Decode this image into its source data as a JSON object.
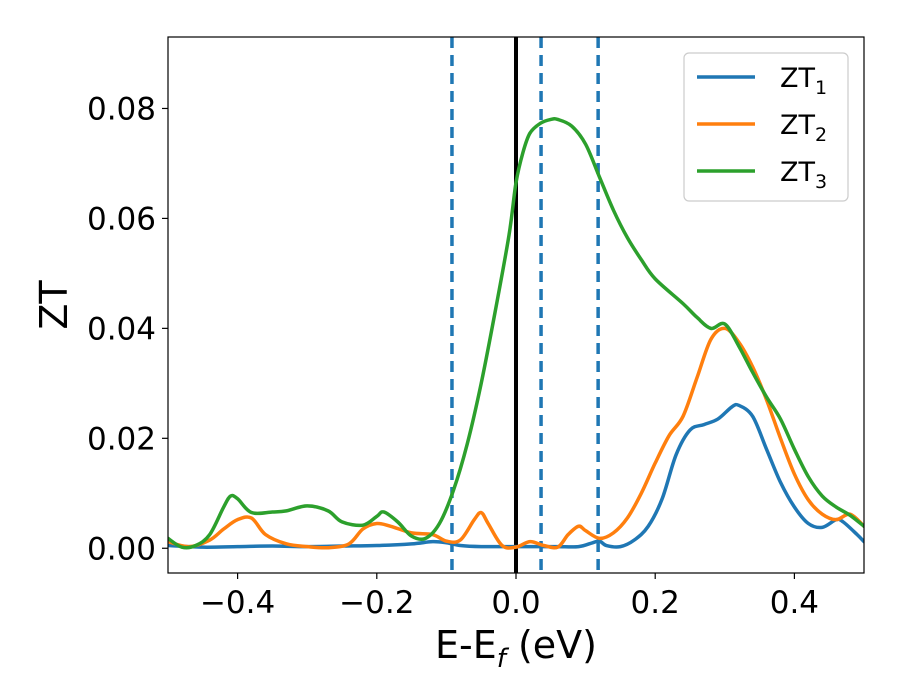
{
  "chart_data": {
    "type": "line",
    "title": "",
    "xlabel": "E-E",
    "xlabel_sub": "f",
    "xlabel_unit": " (eV)",
    "ylabel": "ZT",
    "xlim": [
      -0.5,
      0.5
    ],
    "ylim": [
      -0.0045,
      0.093
    ],
    "xticks": [
      -0.4,
      -0.2,
      0.0,
      0.2,
      0.4
    ],
    "xtick_labels": [
      "−0.4",
      "−0.2",
      "0.0",
      "0.2",
      "0.4"
    ],
    "yticks": [
      0.0,
      0.02,
      0.04,
      0.06,
      0.08
    ],
    "ytick_labels": [
      "0.00",
      "0.02",
      "0.04",
      "0.06",
      "0.08"
    ],
    "grid": false,
    "legend_position": "top-right",
    "series": [
      {
        "name": "ZT",
        "name_sub": "1",
        "color": "#1f77b4",
        "points": [
          [
            -0.5,
            0.0005
          ],
          [
            -0.45,
            0.0002
          ],
          [
            -0.4,
            0.0003
          ],
          [
            -0.35,
            0.0004
          ],
          [
            -0.3,
            0.0003
          ],
          [
            -0.25,
            0.0004
          ],
          [
            -0.2,
            0.0005
          ],
          [
            -0.15,
            0.0008
          ],
          [
            -0.12,
            0.0012
          ],
          [
            -0.1,
            0.001
          ],
          [
            -0.08,
            0.0005
          ],
          [
            -0.05,
            0.0003
          ],
          [
            0.0,
            0.0003
          ],
          [
            0.03,
            0.0003
          ],
          [
            0.06,
            0.0003
          ],
          [
            0.09,
            0.0003
          ],
          [
            0.11,
            0.001
          ],
          [
            0.12,
            0.0013
          ],
          [
            0.13,
            0.0005
          ],
          [
            0.15,
            0.0003
          ],
          [
            0.17,
            0.0015
          ],
          [
            0.19,
            0.004
          ],
          [
            0.21,
            0.009
          ],
          [
            0.23,
            0.017
          ],
          [
            0.25,
            0.0215
          ],
          [
            0.27,
            0.0225
          ],
          [
            0.29,
            0.0235
          ],
          [
            0.31,
            0.0257
          ],
          [
            0.32,
            0.026
          ],
          [
            0.34,
            0.024
          ],
          [
            0.36,
            0.018
          ],
          [
            0.38,
            0.012
          ],
          [
            0.4,
            0.0075
          ],
          [
            0.42,
            0.0045
          ],
          [
            0.44,
            0.0038
          ],
          [
            0.46,
            0.0052
          ],
          [
            0.47,
            0.0048
          ],
          [
            0.49,
            0.0025
          ],
          [
            0.5,
            0.0012
          ]
        ]
      },
      {
        "name": "ZT",
        "name_sub": "2",
        "color": "#ff7f0e",
        "points": [
          [
            -0.5,
            0.0012
          ],
          [
            -0.47,
            0.0003
          ],
          [
            -0.44,
            0.0015
          ],
          [
            -0.42,
            0.0035
          ],
          [
            -0.4,
            0.0052
          ],
          [
            -0.38,
            0.0055
          ],
          [
            -0.36,
            0.0025
          ],
          [
            -0.33,
            0.0008
          ],
          [
            -0.3,
            0.0003
          ],
          [
            -0.27,
            0.0001
          ],
          [
            -0.24,
            0.0008
          ],
          [
            -0.22,
            0.0035
          ],
          [
            -0.2,
            0.0045
          ],
          [
            -0.18,
            0.004
          ],
          [
            -0.15,
            0.0028
          ],
          [
            -0.12,
            0.0025
          ],
          [
            -0.1,
            0.0013
          ],
          [
            -0.08,
            0.0015
          ],
          [
            -0.06,
            0.0052
          ],
          [
            -0.05,
            0.0065
          ],
          [
            -0.04,
            0.0045
          ],
          [
            -0.02,
            0.0005
          ],
          [
            0.0,
            0.0002
          ],
          [
            0.02,
            0.0012
          ],
          [
            0.04,
            0.0005
          ],
          [
            0.06,
            0.0002
          ],
          [
            0.075,
            0.0025
          ],
          [
            0.09,
            0.004
          ],
          [
            0.1,
            0.0032
          ],
          [
            0.12,
            0.0018
          ],
          [
            0.14,
            0.0028
          ],
          [
            0.16,
            0.0055
          ],
          [
            0.18,
            0.01
          ],
          [
            0.2,
            0.0155
          ],
          [
            0.22,
            0.0205
          ],
          [
            0.24,
            0.024
          ],
          [
            0.26,
            0.031
          ],
          [
            0.28,
            0.038
          ],
          [
            0.3,
            0.04
          ],
          [
            0.32,
            0.0375
          ],
          [
            0.34,
            0.033
          ],
          [
            0.36,
            0.027
          ],
          [
            0.38,
            0.02
          ],
          [
            0.4,
            0.0135
          ],
          [
            0.42,
            0.0088
          ],
          [
            0.44,
            0.0062
          ],
          [
            0.46,
            0.0052
          ],
          [
            0.48,
            0.0062
          ],
          [
            0.5,
            0.004
          ]
        ]
      },
      {
        "name": "ZT",
        "name_sub": "3",
        "color": "#2ca02c",
        "points": [
          [
            -0.5,
            0.0018
          ],
          [
            -0.48,
            0.0002
          ],
          [
            -0.46,
            0.0005
          ],
          [
            -0.44,
            0.0025
          ],
          [
            -0.42,
            0.0075
          ],
          [
            -0.41,
            0.0095
          ],
          [
            -0.4,
            0.009
          ],
          [
            -0.38,
            0.0065
          ],
          [
            -0.35,
            0.0066
          ],
          [
            -0.33,
            0.0068
          ],
          [
            -0.3,
            0.0077
          ],
          [
            -0.27,
            0.0068
          ],
          [
            -0.25,
            0.0048
          ],
          [
            -0.22,
            0.0042
          ],
          [
            -0.2,
            0.0058
          ],
          [
            -0.19,
            0.0066
          ],
          [
            -0.17,
            0.0048
          ],
          [
            -0.15,
            0.0022
          ],
          [
            -0.13,
            0.0018
          ],
          [
            -0.11,
            0.0045
          ],
          [
            -0.09,
            0.0105
          ],
          [
            -0.07,
            0.019
          ],
          [
            -0.05,
            0.03
          ],
          [
            -0.03,
            0.043
          ],
          [
            -0.01,
            0.057
          ],
          [
            0.0,
            0.0665
          ],
          [
            0.01,
            0.072
          ],
          [
            0.02,
            0.0755
          ],
          [
            0.035,
            0.0773
          ],
          [
            0.05,
            0.078
          ],
          [
            0.06,
            0.078
          ],
          [
            0.08,
            0.0768
          ],
          [
            0.1,
            0.0735
          ],
          [
            0.12,
            0.0675
          ],
          [
            0.14,
            0.0615
          ],
          [
            0.16,
            0.0565
          ],
          [
            0.18,
            0.0525
          ],
          [
            0.2,
            0.049
          ],
          [
            0.24,
            0.0445
          ],
          [
            0.26,
            0.042
          ],
          [
            0.28,
            0.04
          ],
          [
            0.3,
            0.0408
          ],
          [
            0.32,
            0.0368
          ],
          [
            0.34,
            0.032
          ],
          [
            0.36,
            0.0275
          ],
          [
            0.38,
            0.0235
          ],
          [
            0.4,
            0.018
          ],
          [
            0.42,
            0.013
          ],
          [
            0.44,
            0.0095
          ],
          [
            0.46,
            0.0075
          ],
          [
            0.48,
            0.006
          ],
          [
            0.5,
            0.004
          ]
        ]
      }
    ],
    "reference_lines": [
      {
        "x": 0.0,
        "style": "solid",
        "color": "#000000"
      },
      {
        "x": -0.092,
        "style": "dashed",
        "color": "#1f77b4"
      },
      {
        "x": 0.036,
        "style": "dashed",
        "color": "#1f77b4"
      },
      {
        "x": 0.118,
        "style": "dashed",
        "color": "#1f77b4"
      }
    ]
  }
}
